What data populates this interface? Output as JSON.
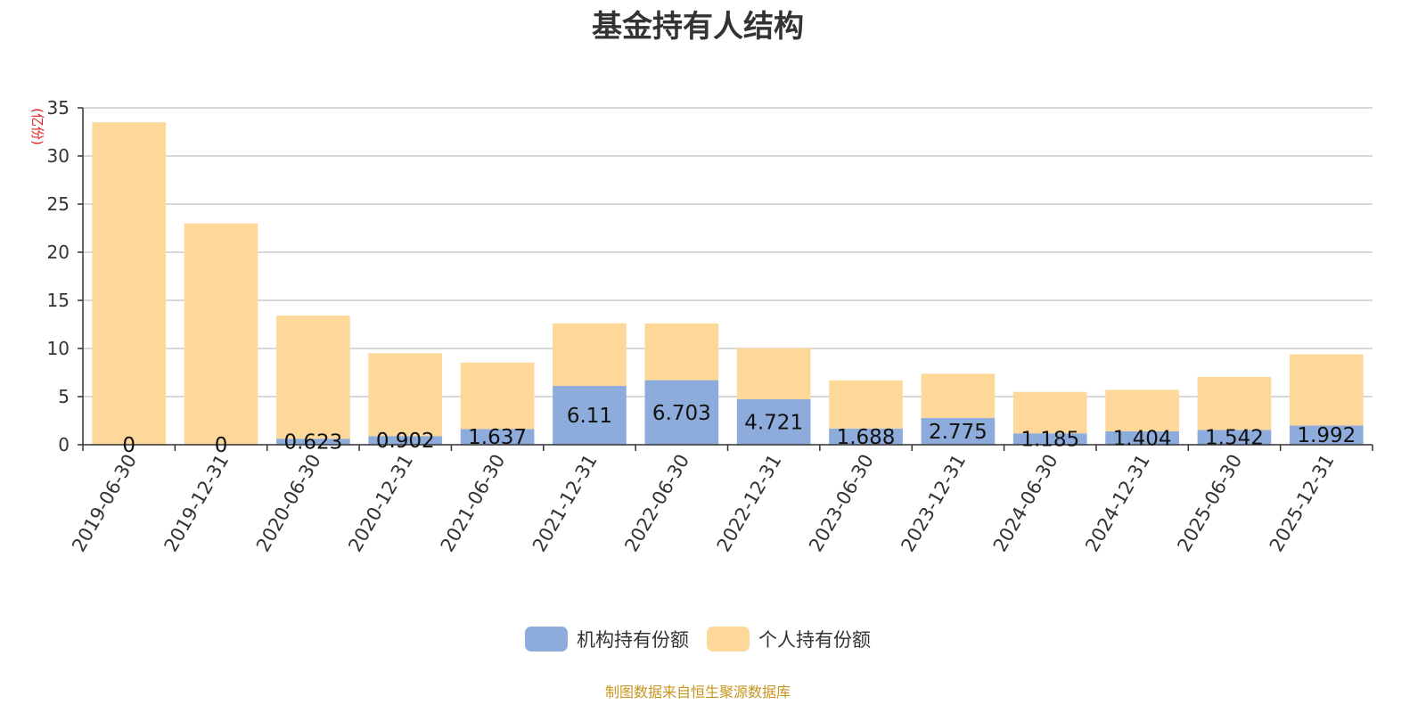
{
  "source_note": "制图数据来自恒生聚源数据库",
  "chart_data": {
    "type": "bar",
    "stacked": true,
    "title": "基金持有人结构",
    "ylabel": "(亿份)",
    "ylim": [
      0,
      35
    ],
    "yticks": [
      "0",
      "5",
      "10",
      "15",
      "20",
      "25",
      "30",
      "35"
    ],
    "grid": true,
    "legend_position": "bottom",
    "categories": [
      "2019-06-30",
      "2019-12-31",
      "2020-06-30",
      "2020-12-31",
      "2021-06-30",
      "2021-12-31",
      "2022-06-30",
      "2022-12-31",
      "2023-06-30",
      "2023-12-31",
      "2024-06-30",
      "2024-12-31",
      "2025-06-30",
      "2025-12-31"
    ],
    "series": [
      {
        "name": "机构持有份额",
        "color": "#8eacdb",
        "values": [
          0,
          0,
          0.623,
          0.902,
          1.637,
          6.11,
          6.703,
          4.721,
          1.688,
          2.775,
          1.185,
          1.404,
          1.542,
          1.992
        ],
        "labels": [
          "0",
          "0",
          "0.623",
          "0.902",
          "1.637",
          "6.11",
          "6.703",
          "4.721",
          "1.688",
          "2.775",
          "1.185",
          "1.404",
          "1.542",
          "1.992"
        ]
      },
      {
        "name": "个人持有份额",
        "color": "#fdd899",
        "values": [
          33.5,
          23.0,
          12.8,
          8.6,
          6.9,
          6.5,
          5.9,
          5.3,
          5.0,
          4.6,
          4.3,
          4.3,
          5.5,
          7.4
        ]
      }
    ]
  }
}
